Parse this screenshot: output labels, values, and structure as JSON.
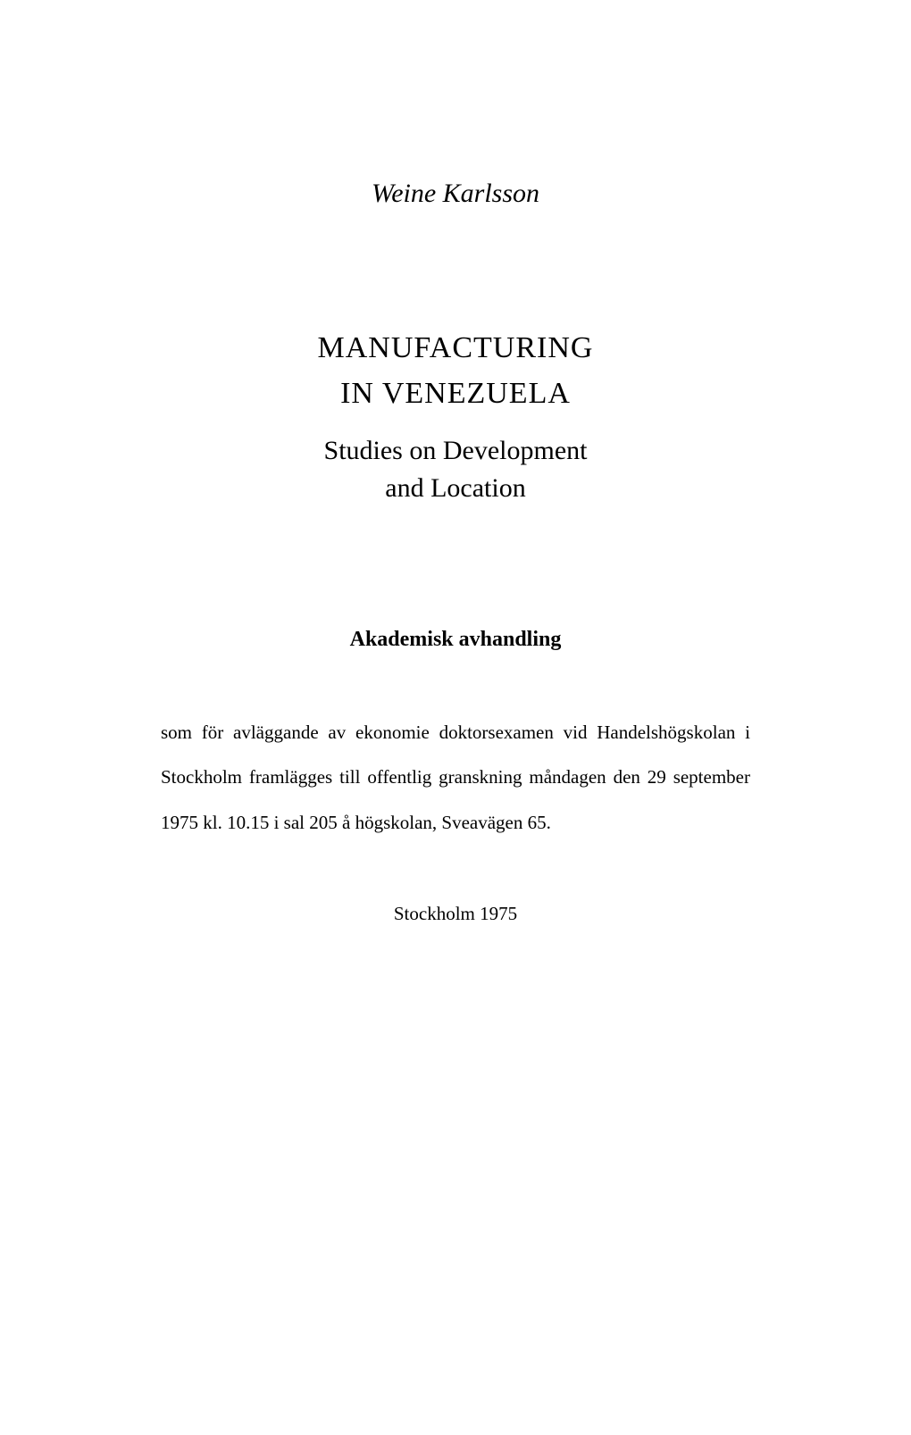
{
  "author": "Weine Karlsson",
  "title_line1": "MANUFACTURING",
  "title_line2": "IN VENEZUELA",
  "subtitle_line1": "Studies on Development",
  "subtitle_line2": "and Location",
  "section_heading": "Akademisk avhandling",
  "body_text": "som för avläggande av ekonomie doktorsexamen vid Handelshögskolan i Stockholm framlägges till offentlig granskning måndagen den 29 september 1975 kl. 10.15 i sal 205 å högskolan, Sveavägen 65.",
  "footer": "Stockholm  1975",
  "typography": {
    "author_fontsize": 30,
    "title_fontsize": 34,
    "subtitle_fontsize": 30,
    "heading_fontsize": 24,
    "body_fontsize": 21,
    "footer_fontsize": 21,
    "text_color": "#000000",
    "background_color": "#ffffff"
  }
}
